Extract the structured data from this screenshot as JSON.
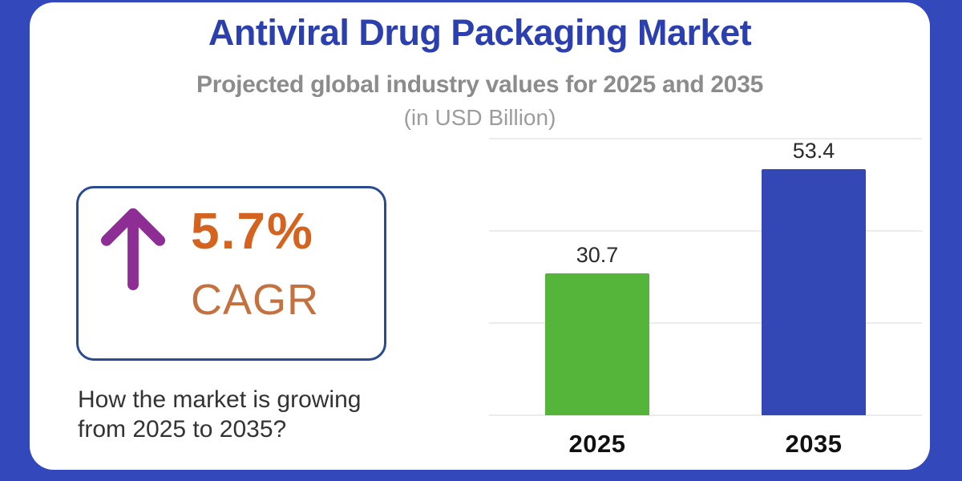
{
  "header": {
    "title": "Antiviral Drug Packaging Market",
    "subtitle": "Projected global industry values for 2025 and 2035",
    "units": "(in USD Billion)"
  },
  "cagr": {
    "icon": "up-arrow-icon",
    "value": "5.7%",
    "label": "CAGR"
  },
  "question": {
    "line1": "How the market is growing",
    "line2": "from 2025 to 2035?"
  },
  "chart_data": {
    "type": "bar",
    "categories": [
      "2025",
      "2035"
    ],
    "values": [
      30.7,
      53.4
    ],
    "value_labels": [
      "30.7",
      "53.4"
    ],
    "bar_colors": [
      "#55B43A",
      "#3348B4"
    ],
    "title": "Antiviral Drug Packaging Market",
    "xlabel": "",
    "ylabel": "USD Billion",
    "ylim": [
      0,
      60
    ],
    "grid": true,
    "gridline_values": [
      0,
      20,
      40,
      60
    ],
    "legend": "none"
  },
  "colors": {
    "frame": "#3348BB",
    "card": "#FFFFFF",
    "title": "#2B3FAE",
    "subtitle": "#8C8C8C",
    "units": "#9C9C9C",
    "cagr_border": "#2B4A8F",
    "arrow": "#8E2D93",
    "cagr_value": "#D4631F",
    "cagr_label": "#C4703F",
    "gridline": "#ECECEA",
    "bar_value_label": "#2B2B2B",
    "category_label": "#111111",
    "question_text": "#333333"
  }
}
